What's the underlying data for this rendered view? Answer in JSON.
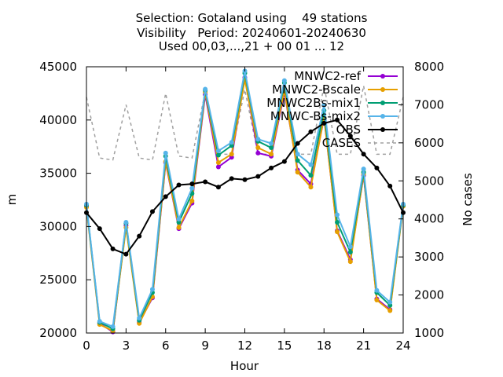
{
  "chart_data": {
    "type": "line",
    "title_lines": [
      "Selection: Gotaland using    49 stations",
      "Visibility   Period: 20240601-20240630",
      "Used 00,03,...,21 + 00 01 ... 12"
    ],
    "xlabel": "Hour",
    "ylabel": "m",
    "y2label": "No cases",
    "xlim": [
      0,
      24
    ],
    "ylim": [
      20000,
      45000
    ],
    "y2lim": [
      1000,
      8000
    ],
    "xticks": [
      0,
      3,
      6,
      9,
      12,
      15,
      18,
      21,
      24
    ],
    "yticks": [
      20000,
      25000,
      30000,
      35000,
      40000,
      45000
    ],
    "y2ticks": [
      1000,
      2000,
      3000,
      4000,
      5000,
      6000,
      7000,
      8000
    ],
    "grid": false,
    "legend_position": "top-right",
    "x": [
      0,
      1,
      2,
      3,
      4,
      5,
      6,
      7,
      8,
      9,
      10,
      11,
      12,
      13,
      14,
      15,
      16,
      17,
      18,
      19,
      20,
      21,
      22,
      23,
      24
    ],
    "series": [
      {
        "name": "MNWC2-ref",
        "color": "#9400d3",
        "axis": "y",
        "values": [
          31900,
          20900,
          20100,
          30100,
          21000,
          23300,
          36000,
          29800,
          32200,
          42400,
          35600,
          36500,
          44000,
          36900,
          36600,
          42600,
          35300,
          34000,
          40200,
          29600,
          26900,
          34800,
          23200,
          22200,
          32000
        ]
      },
      {
        "name": "MNWC2-Bscale",
        "color": "#e69f00",
        "axis": "y",
        "values": [
          31800,
          20800,
          20200,
          29900,
          20900,
          23400,
          36100,
          29900,
          32400,
          42600,
          36000,
          36800,
          43800,
          37400,
          36800,
          42800,
          35100,
          33700,
          40300,
          29500,
          26700,
          34900,
          23100,
          22100,
          31900
        ]
      },
      {
        "name": "MNWC2Bs-mix1",
        "color": "#009e73",
        "axis": "y",
        "values": [
          32000,
          21000,
          20400,
          30300,
          21200,
          23800,
          36600,
          30400,
          33100,
          42800,
          36700,
          37600,
          44400,
          38000,
          37400,
          43500,
          36200,
          34800,
          40900,
          30400,
          27600,
          35100,
          23800,
          22600,
          32000
        ]
      },
      {
        "name": "MNWC-Bs-mix2",
        "color": "#56b4e9",
        "axis": "y",
        "values": [
          32100,
          21100,
          20600,
          30400,
          21400,
          24100,
          36900,
          30700,
          33600,
          42900,
          37100,
          37900,
          44600,
          38200,
          37800,
          43700,
          36800,
          35800,
          41400,
          31100,
          28100,
          35400,
          24000,
          22900,
          32100
        ]
      },
      {
        "name": "OBS",
        "color": "#000000",
        "axis": "y",
        "values": [
          31300,
          29800,
          27900,
          27400,
          29100,
          31400,
          32800,
          33900,
          34000,
          34200,
          33700,
          34500,
          34400,
          34700,
          35500,
          36100,
          37800,
          38900,
          39700,
          40000,
          38500,
          36800,
          35500,
          33800,
          31300
        ]
      },
      {
        "name": "CASES",
        "color": "#a0a0a0",
        "axis": "y2",
        "values": [
          7200,
          5600,
          5550,
          7000,
          5600,
          5550,
          7300,
          5650,
          5600,
          7350,
          5700,
          5700,
          7400,
          5700,
          5700,
          7500,
          5700,
          5700,
          7500,
          5700,
          5700,
          7500,
          5700,
          5700,
          7200
        ]
      }
    ]
  }
}
